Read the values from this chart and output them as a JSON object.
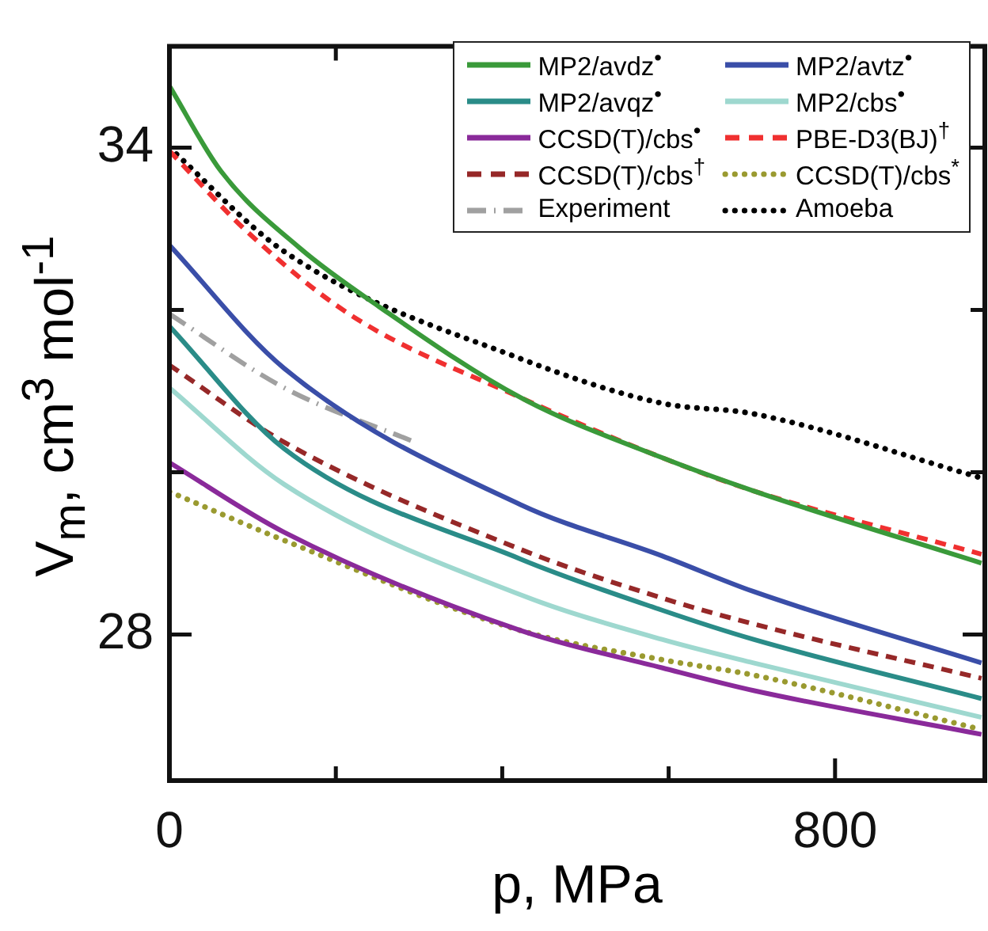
{
  "chart_data": {
    "type": "line",
    "xlabel": "p, MPa",
    "ylabel": "V$_{m}$, cm$^{3}$ mol$^{-1}$",
    "xlim": [
      0,
      980
    ],
    "xticks": [
      0,
      {
        "value": 200,
        "label": null
      },
      {
        "value": 400,
        "label": null
      },
      {
        "value": 600,
        "label": null
      },
      800
    ],
    "ylim": [
      26.2,
      35.25
    ],
    "yticks": [
      {
        "value": 28,
        "label": "28"
      },
      {
        "value": 30,
        "label": null
      },
      {
        "value": 32,
        "label": null
      },
      {
        "value": 34,
        "label": "34"
      }
    ],
    "grid": false,
    "legend": "top right",
    "marker": "none",
    "series": [
      {
        "name": "MP2/avdz$^{•}$",
        "color": "#3a9a3a",
        "line_style": "solid",
        "x": [
          0,
          62,
          157,
          252,
          422,
          592,
          702,
          976
        ],
        "values": [
          34.76,
          33.71,
          32.76,
          32.04,
          30.92,
          30.18,
          29.77,
          28.88
        ]
      },
      {
        "name": "MP2/avtz$^{•}$",
        "color": "#3a4ea8",
        "line_style": "solid",
        "x": [
          0,
          138,
          422,
          592,
          702,
          976
        ],
        "values": [
          32.8,
          31.28,
          29.6,
          28.97,
          28.53,
          27.65
        ]
      },
      {
        "name": "MP2/avqz$^{•}$",
        "color": "#2a8c88",
        "line_style": "solid",
        "x": [
          0,
          138,
          422,
          592,
          702,
          976
        ],
        "values": [
          31.8,
          30.29,
          28.93,
          28.3,
          27.94,
          27.21
        ]
      },
      {
        "name": "MP2/cbs$^{•}$",
        "color": "#9ed8cf",
        "line_style": "solid",
        "x": [
          0,
          138,
          422,
          592,
          702,
          976
        ],
        "values": [
          31.04,
          29.85,
          28.49,
          27.94,
          27.65,
          26.98
        ]
      },
      {
        "name": "CCSD(T)/cbs$^{•}$",
        "color": "#8a2a9a",
        "line_style": "solid",
        "x": [
          0,
          138,
          422,
          592,
          702,
          976
        ],
        "values": [
          30.12,
          29.26,
          28.05,
          27.59,
          27.31,
          26.77
        ]
      },
      {
        "name": "PBE-D3(BJ)$^{†}$",
        "color": "#f03030",
        "line_style": "dashed",
        "x": [
          0,
          95,
          219,
          422,
          592,
          702,
          976
        ],
        "values": [
          33.96,
          32.95,
          31.93,
          30.92,
          30.18,
          29.77,
          28.99
        ]
      },
      {
        "name": "CCSD(T)/cbs$^{†}$",
        "color": "#962828",
        "line_style": "dashed",
        "x": [
          0,
          138,
          422,
          592,
          702,
          976
        ],
        "values": [
          31.32,
          30.37,
          29.05,
          28.45,
          28.13,
          27.46
        ]
      },
      {
        "name": "CCSD(T)/cbs$^{*}$",
        "color": "#9a9a30",
        "line_style": "dotted",
        "x": [
          0,
          138,
          422,
          592,
          702,
          976
        ],
        "values": [
          29.76,
          29.16,
          28.05,
          27.69,
          27.5,
          26.83
        ]
      },
      {
        "name": "Experiment",
        "color": "#a0a0a0",
        "line_style": "dashdot",
        "x": [
          0,
          138,
          295
        ],
        "values": [
          31.95,
          31.04,
          30.37
        ]
      },
      {
        "name": "Amoeba",
        "color": "#000000",
        "line_style": "dotted",
        "x": [
          0,
          138,
          422,
          592,
          702,
          976
        ],
        "values": [
          34.0,
          32.72,
          31.4,
          30.85,
          30.72,
          29.93
        ]
      }
    ]
  }
}
